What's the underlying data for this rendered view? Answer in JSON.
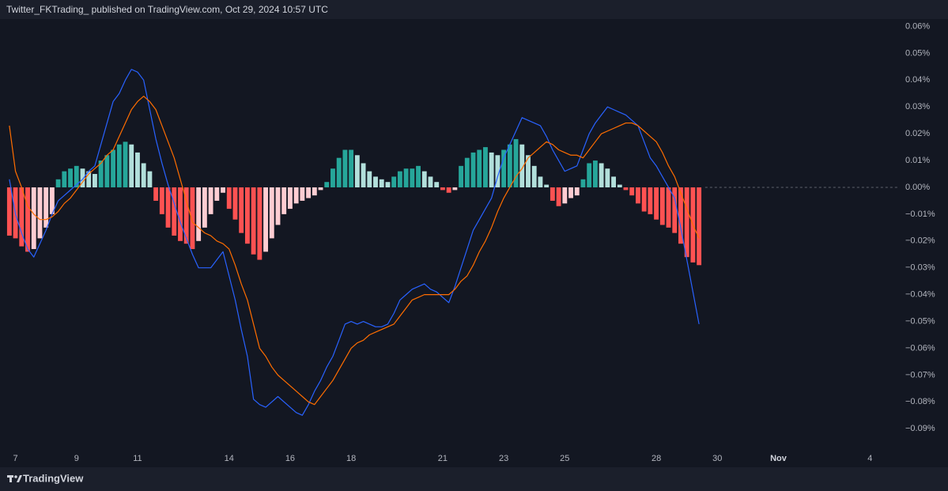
{
  "header": {
    "publisher": "Twitter_FKTrading_ published on TradingView.com, Oct 29, 2024 10:57 UTC"
  },
  "footer": {
    "brand": "TradingView"
  },
  "chart_data": {
    "type": "macd",
    "categories": [
      null,
      "7",
      null,
      null,
      null,
      null,
      null,
      null,
      null,
      null,
      null,
      "9",
      null,
      null,
      null,
      null,
      null,
      null,
      null,
      null,
      null,
      "11",
      null,
      null,
      null,
      null,
      null,
      null,
      null,
      null,
      null,
      null,
      null,
      null,
      null,
      null,
      "14",
      null,
      null,
      null,
      null,
      null,
      null,
      null,
      null,
      null,
      "16",
      null,
      null,
      null,
      null,
      null,
      null,
      null,
      null,
      null,
      "18",
      null,
      null,
      null,
      null,
      null,
      null,
      null,
      null,
      null,
      null,
      null,
      null,
      null,
      null,
      "21",
      null,
      null,
      null,
      null,
      null,
      null,
      null,
      null,
      null,
      "23",
      null,
      null,
      null,
      null,
      null,
      null,
      null,
      null,
      null,
      "25",
      null,
      null,
      null,
      null,
      null,
      null,
      null,
      null,
      null,
      null,
      null,
      null,
      null,
      null,
      "28",
      null,
      null,
      null,
      null,
      null,
      null,
      null,
      null,
      null,
      "30",
      null,
      null,
      null,
      null,
      null,
      null,
      null,
      null,
      null,
      "Nov",
      null,
      null,
      null,
      null,
      null,
      null,
      null,
      null,
      null,
      null,
      null,
      null,
      null,
      null,
      "4",
      null,
      null,
      null,
      null
    ],
    "ylim": [
      -0.0982,
      0.0628
    ],
    "yticks": [
      {
        "value": 0.06,
        "label": "0.06%"
      },
      {
        "value": 0.05,
        "label": "0.05%"
      },
      {
        "value": 0.04,
        "label": "0.04%"
      },
      {
        "value": 0.03,
        "label": "0.03%"
      },
      {
        "value": 0.02,
        "label": "0.02%"
      },
      {
        "value": 0.01,
        "label": "0.01%"
      },
      {
        "value": 0,
        "label": "0.00%"
      },
      {
        "value": -0.01,
        "label": "−0.01%"
      },
      {
        "value": -0.02,
        "label": "−0.02%"
      },
      {
        "value": -0.03,
        "label": "−0.03%"
      },
      {
        "value": -0.04,
        "label": "−0.04%"
      },
      {
        "value": -0.05,
        "label": "−0.05%"
      },
      {
        "value": -0.06,
        "label": "−0.06%"
      },
      {
        "value": -0.07,
        "label": "−0.07%"
      },
      {
        "value": -0.08,
        "label": "−0.08%"
      },
      {
        "value": -0.09,
        "label": "−0.09%"
      }
    ],
    "zero_line_color": "#5d606b",
    "series": [
      {
        "type": "histogram",
        "colors": {
          "grow_above": "#26a69a",
          "fall_above": "#b2dfdb",
          "grow_below": "#ffcdd2",
          "fall_below": "#ff5252"
        },
        "values": [
          -0.018,
          -0.019,
          -0.022,
          -0.024,
          -0.023,
          -0.019,
          -0.015,
          -0.01,
          0.003,
          0.006,
          0.007,
          0.008,
          0.007,
          0.006,
          0.005,
          0.01,
          0.012,
          0.014,
          0.016,
          0.017,
          0.016,
          0.013,
          0.009,
          0.006,
          -0.005,
          -0.01,
          -0.015,
          -0.018,
          -0.02,
          -0.021,
          -0.023,
          -0.02,
          -0.015,
          -0.01,
          -0.005,
          -0.002,
          -0.008,
          -0.012,
          -0.017,
          -0.021,
          -0.025,
          -0.027,
          -0.024,
          -0.019,
          -0.014,
          -0.01,
          -0.008,
          -0.006,
          -0.005,
          -0.004,
          -0.003,
          -0.001,
          0.002,
          0.007,
          0.011,
          0.014,
          0.014,
          0.012,
          0.009,
          0.006,
          0.004,
          0.003,
          0.002,
          0.004,
          0.006,
          0.007,
          0.007,
          0.008,
          0.006,
          0.004,
          0.002,
          -0.001,
          -0.002,
          -0.001,
          0.008,
          0.011,
          0.013,
          0.014,
          0.015,
          0.013,
          0.012,
          0.014,
          0.016,
          0.018,
          0.016,
          0.012,
          0.008,
          0.004,
          0.001,
          -0.005,
          -0.007,
          -0.006,
          -0.004,
          -0.003,
          0.003,
          0.009,
          0.01,
          0.009,
          0.007,
          0.004,
          0.001,
          -0.001,
          -0.003,
          -0.006,
          -0.009,
          -0.01,
          -0.012,
          -0.014,
          -0.015,
          -0.017,
          -0.021,
          -0.026,
          -0.028,
          -0.029,
          null,
          null,
          null,
          null,
          null,
          null,
          null,
          null,
          null,
          null,
          null,
          null,
          null,
          null,
          null,
          null,
          null,
          null,
          null,
          null,
          null,
          null,
          null,
          null,
          null,
          null,
          null,
          null,
          null,
          null,
          null,
          null
        ]
      },
      {
        "type": "line",
        "color": "#2962ff",
        "values": [
          0.003,
          -0.01,
          -0.017,
          -0.023,
          -0.026,
          -0.021,
          -0.016,
          -0.01,
          -0.005,
          -0.003,
          -0.001,
          0.001,
          0.003,
          0.006,
          0.008,
          0.016,
          0.024,
          0.032,
          0.035,
          0.04,
          0.044,
          0.043,
          0.04,
          0.029,
          0.018,
          0.009,
          0.001,
          -0.006,
          -0.013,
          -0.019,
          -0.025,
          -0.03,
          -0.03,
          -0.03,
          -0.027,
          -0.024,
          -0.033,
          -0.042,
          -0.053,
          -0.063,
          -0.079,
          -0.081,
          -0.082,
          -0.08,
          -0.078,
          -0.08,
          -0.082,
          -0.084,
          -0.085,
          -0.081,
          -0.076,
          -0.072,
          -0.067,
          -0.063,
          -0.057,
          -0.051,
          -0.05,
          -0.051,
          -0.05,
          -0.051,
          -0.052,
          -0.052,
          -0.051,
          -0.047,
          -0.042,
          -0.04,
          -0.038,
          -0.037,
          -0.036,
          -0.038,
          -0.039,
          -0.041,
          -0.043,
          -0.037,
          -0.03,
          -0.023,
          -0.016,
          -0.012,
          -0.008,
          -0.004,
          0.004,
          0.011,
          0.016,
          0.021,
          0.026,
          0.025,
          0.024,
          0.023,
          0.019,
          0.014,
          0.01,
          0.006,
          0.007,
          0.008,
          0.014,
          0.02,
          0.024,
          0.027,
          0.03,
          0.029,
          0.028,
          0.027,
          0.025,
          0.023,
          0.017,
          0.011,
          0.008,
          0.004,
          0.0,
          -0.004,
          -0.015,
          -0.027,
          -0.039,
          -0.051,
          null,
          null,
          null,
          null,
          null,
          null,
          null,
          null,
          null,
          null,
          null,
          null,
          null,
          null,
          null,
          null,
          null,
          null,
          null,
          null,
          null,
          null,
          null,
          null,
          null,
          null,
          null,
          null,
          null,
          null,
          null,
          null
        ]
      },
      {
        "type": "line",
        "color": "#ff6d00",
        "values": [
          0.023,
          0.006,
          0.0,
          -0.007,
          -0.01,
          -0.012,
          -0.012,
          -0.011,
          -0.009,
          -0.006,
          -0.004,
          -0.001,
          0.002,
          0.005,
          0.007,
          0.009,
          0.012,
          0.014,
          0.019,
          0.024,
          0.029,
          0.032,
          0.034,
          0.032,
          0.029,
          0.023,
          0.017,
          0.011,
          0.003,
          -0.005,
          -0.013,
          -0.015,
          -0.017,
          -0.018,
          -0.02,
          -0.021,
          -0.023,
          -0.029,
          -0.036,
          -0.042,
          -0.051,
          -0.06,
          -0.063,
          -0.067,
          -0.07,
          -0.072,
          -0.074,
          -0.076,
          -0.078,
          -0.08,
          -0.081,
          -0.078,
          -0.075,
          -0.072,
          -0.068,
          -0.064,
          -0.06,
          -0.058,
          -0.057,
          -0.055,
          -0.054,
          -0.053,
          -0.052,
          -0.051,
          -0.048,
          -0.045,
          -0.042,
          -0.041,
          -0.04,
          -0.04,
          -0.04,
          -0.04,
          -0.04,
          -0.038,
          -0.035,
          -0.033,
          -0.029,
          -0.024,
          -0.02,
          -0.015,
          -0.009,
          -0.004,
          0.0,
          0.004,
          0.007,
          0.011,
          0.013,
          0.015,
          0.017,
          0.016,
          0.014,
          0.013,
          0.012,
          0.012,
          0.011,
          0.014,
          0.017,
          0.02,
          0.021,
          0.022,
          0.023,
          0.024,
          0.024,
          0.023,
          0.021,
          0.019,
          0.017,
          0.013,
          0.008,
          0.004,
          -0.002,
          -0.008,
          -0.014,
          -0.019,
          null,
          null,
          null,
          null,
          null,
          null,
          null,
          null,
          null,
          null,
          null,
          null,
          null,
          null,
          null,
          null,
          null,
          null,
          null,
          null,
          null,
          null,
          null,
          null,
          null,
          null,
          null,
          null,
          null,
          null,
          null,
          null
        ]
      }
    ]
  }
}
